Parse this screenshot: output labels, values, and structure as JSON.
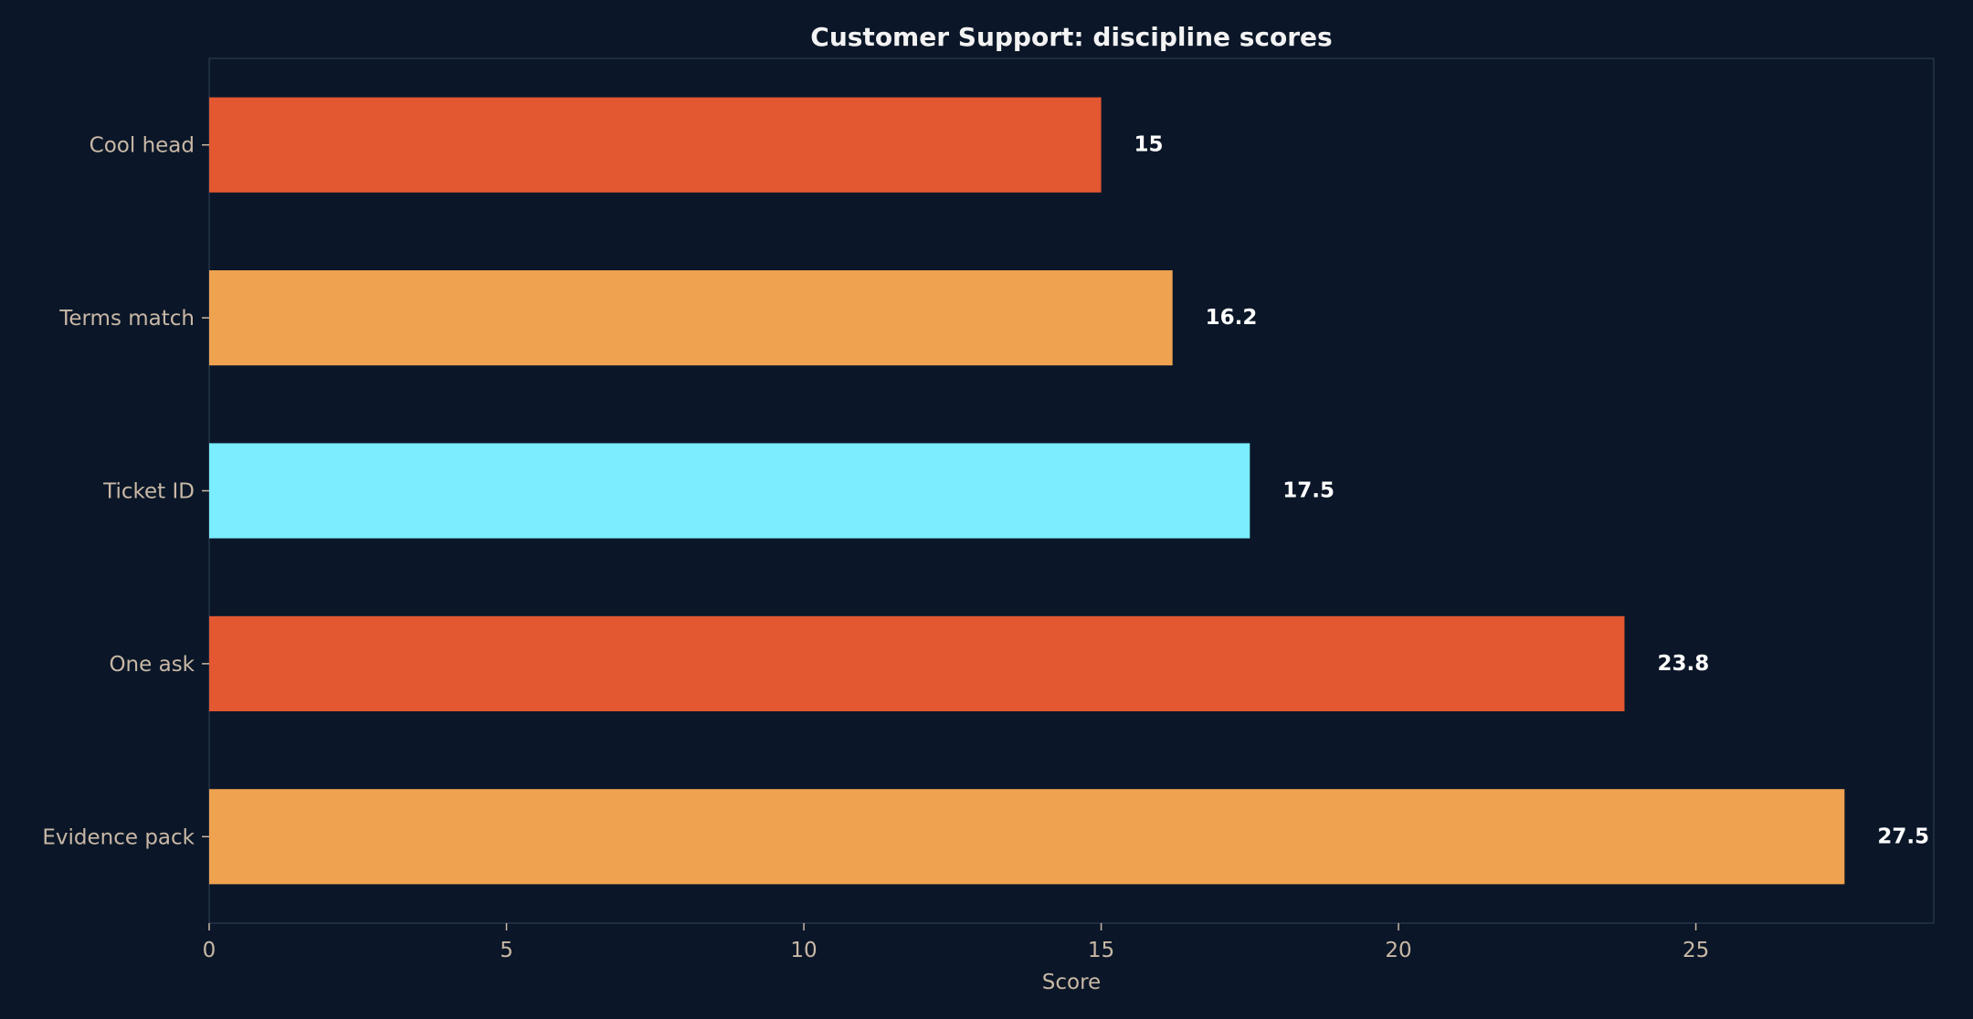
{
  "chart_data": {
    "type": "bar",
    "orientation": "horizontal",
    "title": "Customer Support: discipline scores",
    "xlabel": "Score",
    "ylabel": "",
    "xlim": [
      0,
      29
    ],
    "xticks": [
      0,
      5,
      10,
      15,
      20,
      25
    ],
    "grid": false,
    "categories": [
      "Cool head",
      "Terms match",
      "Ticket ID",
      "One ask",
      "Evidence pack"
    ],
    "values": [
      15,
      16.2,
      17.5,
      23.8,
      27.5
    ],
    "value_labels": [
      "15",
      "16.2",
      "17.5",
      "23.8",
      "27.5"
    ],
    "colors": [
      "#e35731",
      "#efa24f",
      "#7aedff",
      "#e35731",
      "#efa24f"
    ],
    "background": "#0b1728",
    "frame_color": "#243447",
    "tick_color": "#c9b8a6"
  }
}
